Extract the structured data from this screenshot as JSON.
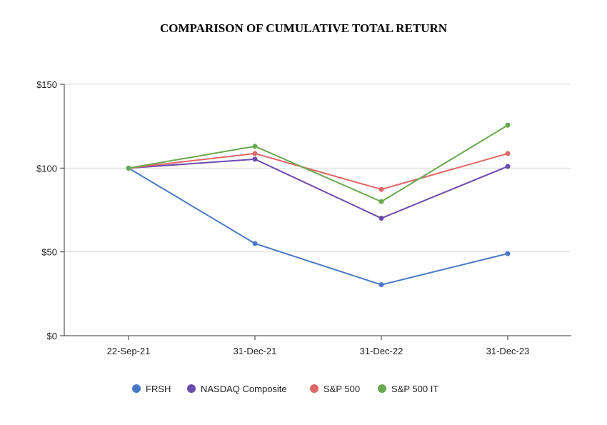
{
  "chart_data": {
    "type": "line",
    "title": "COMPARISON OF CUMULATIVE TOTAL RETURN",
    "xlabel": "",
    "ylabel": "",
    "categories": [
      "22-Sep-21",
      "31-Dec-21",
      "31-Dec-22",
      "31-Dec-23"
    ],
    "ylim": [
      0,
      150
    ],
    "yticks": [
      0,
      50,
      100,
      150
    ],
    "ytick_labels": [
      "$0",
      "$50",
      "$100",
      "$150"
    ],
    "grid": true,
    "legend_placement": "bottom",
    "series": [
      {
        "name": "FRSH",
        "color": "#4a78c9",
        "values": [
          100,
          55.0,
          30.4,
          49.0
        ]
      },
      {
        "name": "NASDAQ Composite",
        "color": "#6a4aad",
        "values": [
          100,
          105.3,
          70.1,
          101.0
        ]
      },
      {
        "name": "S&P 500",
        "color": "#e06666",
        "values": [
          100,
          108.7,
          87.3,
          108.7
        ]
      },
      {
        "name": "S&P 500 IT",
        "color": "#6aa84f",
        "values": [
          100,
          113.0,
          80.0,
          125.6
        ]
      }
    ]
  }
}
